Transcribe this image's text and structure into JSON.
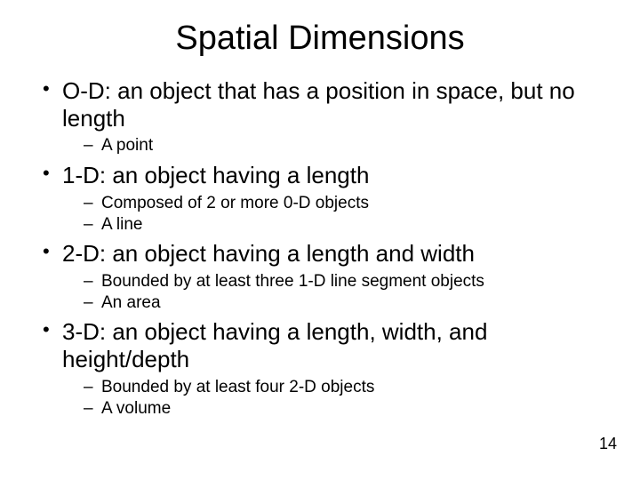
{
  "title": "Spatial Dimensions",
  "page_number": "14",
  "colors": {
    "background": "#ffffff",
    "text": "#000000"
  },
  "typography": {
    "title_fontsize": 38,
    "level1_fontsize": 26,
    "level2_fontsize": 19,
    "font_family": "Arial"
  },
  "bullets": [
    {
      "text": "O-D: an object that has a position in space, but no length",
      "sub": [
        "A point"
      ]
    },
    {
      "text": "1-D: an object having a length",
      "sub": [
        "Composed of 2 or more 0-D objects",
        "A line"
      ]
    },
    {
      "text": "2-D: an object having a length and width",
      "sub": [
        "Bounded by at least three 1-D line segment objects",
        "An area"
      ]
    },
    {
      "text": "3-D: an object having a length, width, and height/depth",
      "sub": [
        "Bounded by at least four 2-D objects",
        "A volume"
      ]
    }
  ]
}
